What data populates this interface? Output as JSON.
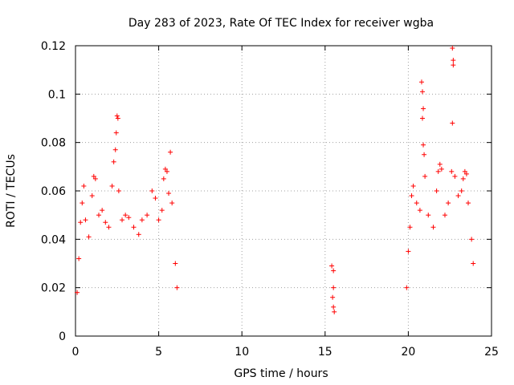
{
  "chart_data": {
    "type": "scatter",
    "title": "Day 283 of 2023, Rate Of TEC Index for receiver wgba",
    "xlabel": "GPS time / hours",
    "ylabel": "ROTI / TECUs",
    "xlim": [
      0,
      25
    ],
    "ylim": [
      0,
      0.12
    ],
    "x_ticks": [
      0,
      5,
      10,
      15,
      20,
      25
    ],
    "x_tick_labels": [
      "0",
      "5",
      "10",
      "15",
      "20",
      "25"
    ],
    "y_ticks": [
      0,
      0.02,
      0.04,
      0.06,
      0.08,
      0.1,
      0.12
    ],
    "y_tick_labels": [
      "0",
      "0.02",
      "0.04",
      "0.06",
      "0.08",
      "0.1",
      "0.12"
    ],
    "grid": true,
    "marker": "plus",
    "color": "#ff0000",
    "series": [
      {
        "values": [
          [
            0.1,
            0.018
          ],
          [
            0.2,
            0.032
          ],
          [
            0.3,
            0.047
          ],
          [
            0.4,
            0.055
          ],
          [
            0.5,
            0.062
          ],
          [
            0.6,
            0.048
          ],
          [
            0.8,
            0.041
          ],
          [
            1.0,
            0.058
          ],
          [
            1.1,
            0.066
          ],
          [
            1.2,
            0.065
          ],
          [
            1.4,
            0.05
          ],
          [
            1.6,
            0.052
          ],
          [
            1.8,
            0.047
          ],
          [
            2.0,
            0.045
          ],
          [
            2.2,
            0.062
          ],
          [
            2.3,
            0.072
          ],
          [
            2.4,
            0.077
          ],
          [
            2.45,
            0.084
          ],
          [
            2.5,
            0.091
          ],
          [
            2.55,
            0.09
          ],
          [
            2.6,
            0.06
          ],
          [
            2.8,
            0.048
          ],
          [
            3.0,
            0.05
          ],
          [
            3.2,
            0.049
          ],
          [
            3.5,
            0.045
          ],
          [
            3.8,
            0.042
          ],
          [
            4.0,
            0.048
          ],
          [
            4.3,
            0.05
          ],
          [
            4.6,
            0.06
          ],
          [
            4.8,
            0.057
          ],
          [
            5.0,
            0.048
          ],
          [
            5.2,
            0.052
          ],
          [
            5.3,
            0.065
          ],
          [
            5.4,
            0.069
          ],
          [
            5.5,
            0.068
          ],
          [
            5.6,
            0.059
          ],
          [
            5.7,
            0.076
          ],
          [
            5.8,
            0.055
          ],
          [
            6.0,
            0.03
          ],
          [
            6.1,
            0.02
          ],
          [
            15.4,
            0.029
          ],
          [
            15.5,
            0.027
          ],
          [
            15.5,
            0.02
          ],
          [
            15.45,
            0.016
          ],
          [
            15.5,
            0.012
          ],
          [
            15.55,
            0.01
          ],
          [
            19.9,
            0.02
          ],
          [
            20.0,
            0.035
          ],
          [
            20.1,
            0.045
          ],
          [
            20.2,
            0.058
          ],
          [
            20.3,
            0.062
          ],
          [
            20.5,
            0.055
          ],
          [
            20.7,
            0.052
          ],
          [
            20.8,
            0.105
          ],
          [
            20.85,
            0.101
          ],
          [
            20.9,
            0.094
          ],
          [
            20.85,
            0.09
          ],
          [
            20.9,
            0.079
          ],
          [
            20.95,
            0.075
          ],
          [
            21.0,
            0.066
          ],
          [
            21.2,
            0.05
          ],
          [
            21.5,
            0.045
          ],
          [
            21.7,
            0.06
          ],
          [
            21.8,
            0.068
          ],
          [
            21.9,
            0.071
          ],
          [
            22.0,
            0.069
          ],
          [
            22.2,
            0.05
          ],
          [
            22.4,
            0.055
          ],
          [
            22.6,
            0.068
          ],
          [
            22.65,
            0.119
          ],
          [
            22.7,
            0.114
          ],
          [
            22.7,
            0.112
          ],
          [
            22.65,
            0.088
          ],
          [
            22.8,
            0.066
          ],
          [
            23.0,
            0.058
          ],
          [
            23.2,
            0.06
          ],
          [
            23.3,
            0.065
          ],
          [
            23.4,
            0.068
          ],
          [
            23.5,
            0.067
          ],
          [
            23.6,
            0.055
          ],
          [
            23.8,
            0.04
          ],
          [
            23.9,
            0.03
          ]
        ]
      }
    ]
  }
}
